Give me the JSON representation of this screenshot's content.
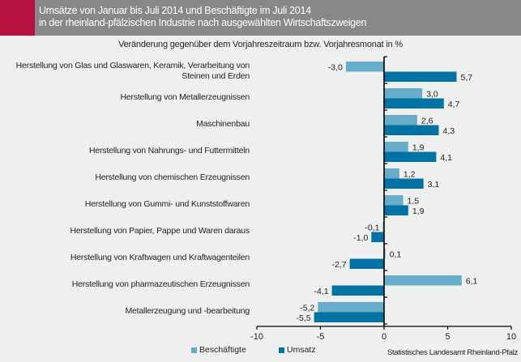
{
  "header": {
    "title_line1": "Umsätze von Januar bis Juli 2014 und Beschäftigte im Juli 2014",
    "title_line2": "in der rheinland-pfälzischen Industrie nach ausgewählten Wirtschaftszweigen",
    "accent_color": "#b5123f"
  },
  "source": "Statistisches Landesamt Rheinland-Pfalz",
  "chart_data": {
    "type": "bar",
    "orientation": "horizontal",
    "title": "Umsätze von Januar bis Juli 2014 und Beschäftigte im Juli 2014 in der rheinland-pfälzischen Industrie nach ausgewählten Wirtschaftszweigen",
    "subtitle": "Veränderung gegenüber dem Vorjahreszeitraum bzw. Vorjahresmonat in %",
    "categories": [
      "Herstellung von Glas und Glaswaren, Keramik, Verarbeitung von Steinen und Erden",
      "Herstellung von Metallerzeugnissen",
      "Maschinenbau",
      "Herstellung von Nahrungs- und Futtermitteln",
      "Herstellung von chemischen Erzeugnissen",
      "Herstellung von Gummi- und Kunststoffwaren",
      "Herstellung von Papier, Pappe und Waren daraus",
      "Herstellung von Kraftwagen und Kraftwagenteilen",
      "Herstellung von pharmazeutischen Erzeugnissen",
      "Metallerzeugung und -bearbeitung"
    ],
    "category_lines": [
      [
        "Herstellung von Glas und Glaswaren, Keramik, Verarbeitung von",
        "Steinen und Erden"
      ],
      [
        "Herstellung von Metallerzeugnissen"
      ],
      [
        "Maschinenbau"
      ],
      [
        "Herstellung von Nahrungs- und Futtermitteln"
      ],
      [
        "Herstellung von chemischen Erzeugnissen"
      ],
      [
        "Herstellung von Gummi- und Kunststoffwaren"
      ],
      [
        "Herstellung von Papier, Pappe und Waren daraus"
      ],
      [
        "Herstellung von Kraftwagen und Kraftwagenteilen"
      ],
      [
        "Herstellung von pharmazeutischen Erzeugnissen"
      ],
      [
        "Metallerzeugung und -bearbeitung"
      ]
    ],
    "series": [
      {
        "name": "Beschäftigte",
        "color": "#67acc9",
        "values": [
          -3.0,
          3.0,
          2.6,
          1.9,
          1.2,
          1.5,
          -0.1,
          0.1,
          6.1,
          -5.2
        ],
        "labels": [
          "-3,0",
          "3,0",
          "2,6",
          "1,9",
          "1,2",
          "1,5",
          "-0,1",
          "0,1",
          "6,1",
          "-5,2"
        ]
      },
      {
        "name": "Umsatz",
        "color": "#0072a3",
        "values": [
          5.7,
          4.7,
          4.3,
          4.1,
          3.1,
          1.9,
          -1.0,
          -2.7,
          -4.1,
          -5.5
        ],
        "labels": [
          "5,7",
          "4,7",
          "4,3",
          "4,1",
          "3,1",
          "1,9",
          "-1,0",
          "-2,7",
          "-4,1",
          "-5,5"
        ]
      }
    ],
    "xlim": [
      -10,
      10
    ],
    "xticks": [
      -10,
      -5,
      0,
      5,
      10
    ],
    "xtick_labels": [
      "-10",
      "-5",
      "0",
      "5",
      "10"
    ],
    "xlabel": "",
    "ylabel": "",
    "grid": false,
    "legend": "bottom-left"
  }
}
